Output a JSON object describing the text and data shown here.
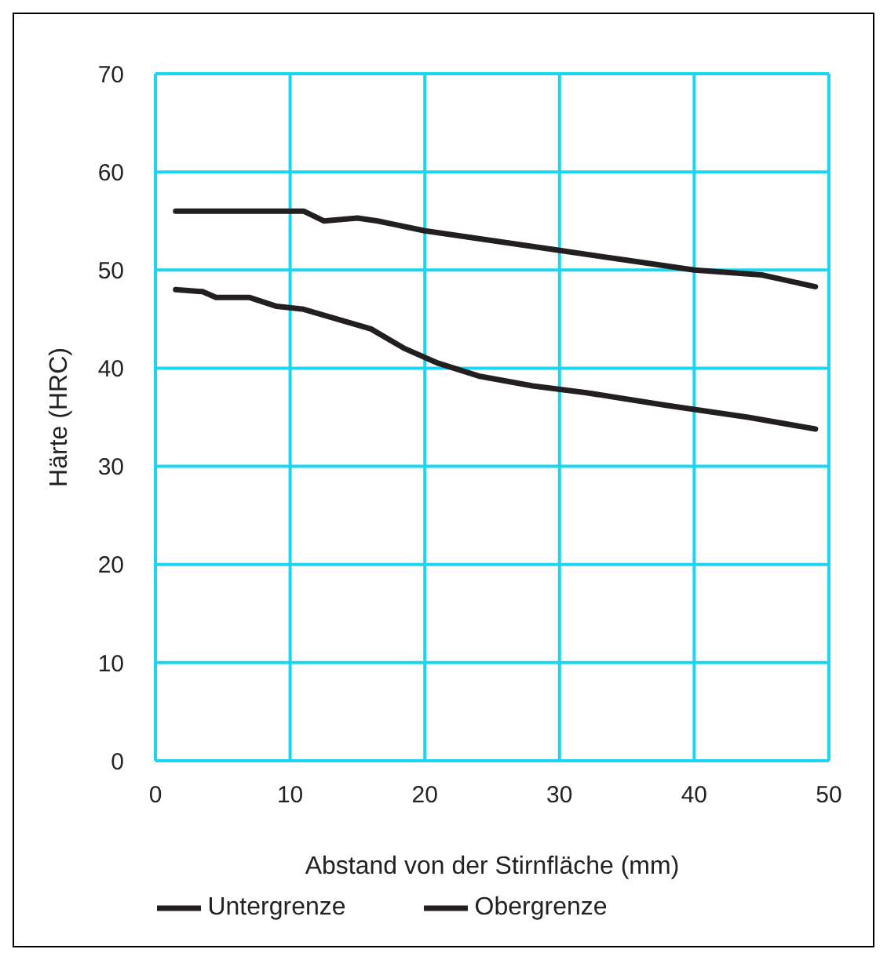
{
  "chart_data": {
    "type": "line",
    "xlabel": "Abstand von der Stirnfläche (mm)",
    "ylabel": "Härte (HRC)",
    "xlim": [
      0,
      50
    ],
    "xticks": [
      0,
      10,
      20,
      30,
      40,
      50
    ],
    "ylim": [
      0,
      70
    ],
    "yticks": [
      0,
      10,
      20,
      30,
      40,
      50,
      60,
      70
    ],
    "grid": true,
    "legend": "bottom",
    "marker": "none",
    "line_style": "solid",
    "series": [
      {
        "name": "Untergrenze",
        "color": "#231f20",
        "x": [
          1.5,
          3.5,
          4.5,
          7,
          9,
          11,
          13,
          16,
          18.5,
          21,
          24,
          28,
          32,
          38,
          44,
          49
        ],
        "values": [
          48,
          47.8,
          47.2,
          47.2,
          46.3,
          46,
          45.2,
          44,
          42,
          40.5,
          39.2,
          38.2,
          37.5,
          36.2,
          35,
          33.8
        ]
      },
      {
        "name": "Obergrenze",
        "color": "#231f20",
        "x": [
          1.5,
          11,
          12.5,
          15,
          16.5,
          20,
          25,
          30,
          35,
          40,
          45,
          49
        ],
        "values": [
          56,
          56,
          55,
          55.3,
          55,
          54,
          53,
          52,
          51,
          50,
          49.5,
          48.3
        ]
      }
    ]
  }
}
